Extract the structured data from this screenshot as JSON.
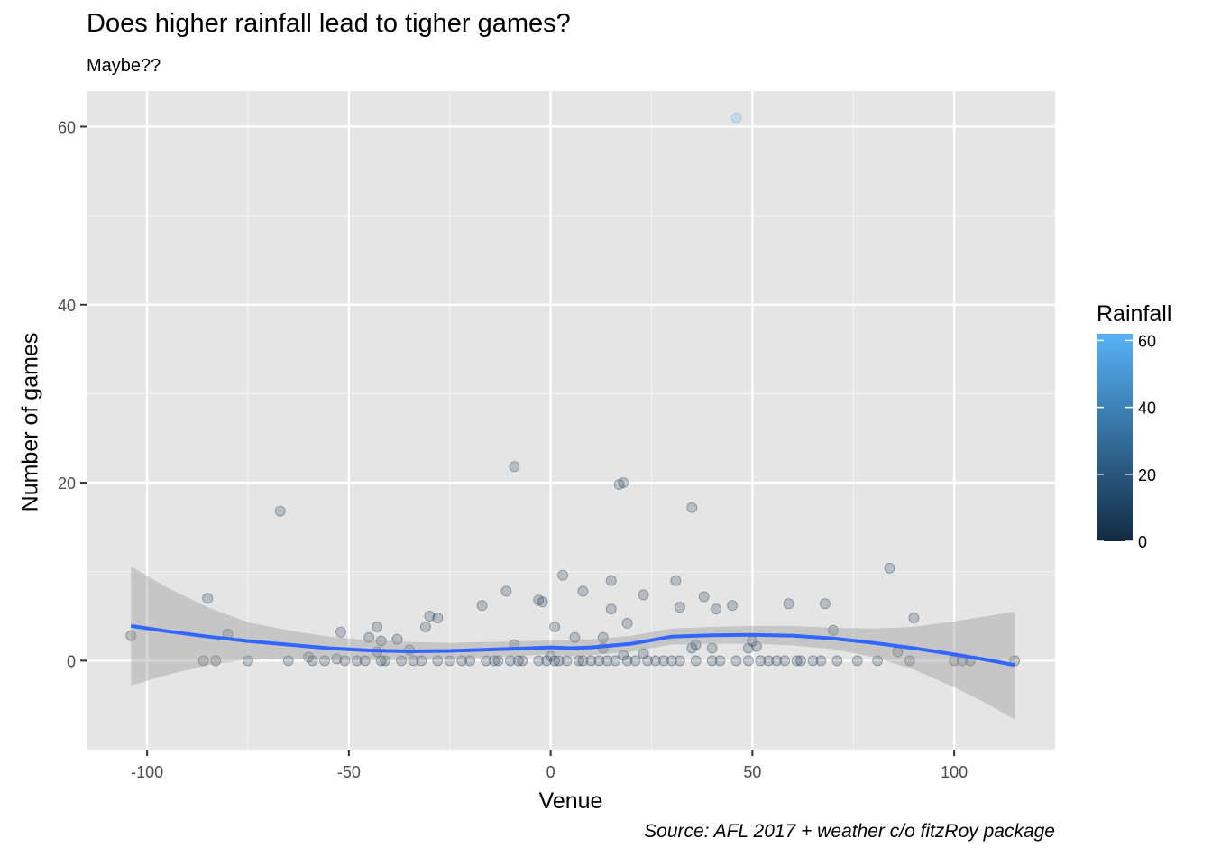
{
  "chart_data": {
    "type": "scatter",
    "title": "Does higher rainfall lead to tigher games?",
    "subtitle": "Maybe??",
    "xlabel": "Venue",
    "ylabel": "Number of games",
    "caption": "Source: AFL 2017 + weather c/o fitzRoy package",
    "xlim": [
      -115,
      125
    ],
    "ylim": [
      -10,
      64
    ],
    "x_ticks": [
      -100,
      -50,
      0,
      50,
      100
    ],
    "y_ticks": [
      0,
      20,
      40,
      60
    ],
    "grid": true,
    "legend": {
      "title": "Rainfall",
      "placement": "right",
      "ticks": [
        0,
        20,
        40,
        60
      ],
      "range": [
        0,
        62
      ],
      "color_low": "#132B43",
      "color_high": "#56B1F7"
    },
    "smooth": {
      "color": "#3366FF",
      "band_color": "#999999",
      "x": [
        -104,
        -95,
        -85,
        -75,
        -65,
        -55,
        -45,
        -35,
        -25,
        -15,
        -5,
        0,
        5,
        10,
        20,
        25,
        30,
        40,
        50,
        60,
        70,
        80,
        90,
        100,
        108,
        115
      ],
      "y": [
        3.9,
        3.3,
        2.7,
        2.2,
        1.8,
        1.4,
        1.15,
        1.05,
        1.1,
        1.25,
        1.4,
        1.5,
        1.4,
        1.5,
        1.9,
        2.3,
        2.7,
        2.85,
        2.9,
        2.8,
        2.5,
        2.0,
        1.4,
        0.7,
        0.1,
        -0.5
      ],
      "lower": [
        -2.8,
        -1.6,
        -0.5,
        0.1,
        0.2,
        0.1,
        0.0,
        0.0,
        0.2,
        0.4,
        0.6,
        0.7,
        0.5,
        0.6,
        1.0,
        1.4,
        1.8,
        1.9,
        1.9,
        1.7,
        1.3,
        0.4,
        -1.0,
        -3.0,
        -4.8,
        -6.6
      ],
      "upper": [
        10.6,
        8.2,
        6.0,
        4.3,
        3.4,
        2.7,
        2.3,
        2.1,
        2.0,
        2.1,
        2.2,
        2.3,
        2.3,
        2.4,
        2.8,
        3.2,
        3.6,
        3.8,
        3.9,
        3.9,
        3.7,
        3.6,
        3.8,
        4.4,
        5.0,
        5.5
      ]
    },
    "points": [
      {
        "x": -104,
        "y": 2.8,
        "r": 2
      },
      {
        "x": -86,
        "y": 0,
        "r": 1
      },
      {
        "x": -83,
        "y": 0,
        "r": 0
      },
      {
        "x": -85,
        "y": 7,
        "r": 3
      },
      {
        "x": -80,
        "y": 3,
        "r": 2
      },
      {
        "x": -75,
        "y": 0,
        "r": 1
      },
      {
        "x": -67,
        "y": 16.8,
        "r": 5
      },
      {
        "x": -65,
        "y": 0,
        "r": 0
      },
      {
        "x": -60,
        "y": 0.4,
        "r": 1
      },
      {
        "x": -59,
        "y": 0,
        "r": 0
      },
      {
        "x": -56,
        "y": 0,
        "r": 0
      },
      {
        "x": -53,
        "y": 0.2,
        "r": 0
      },
      {
        "x": -52,
        "y": 3.2,
        "r": 2
      },
      {
        "x": -51,
        "y": 0,
        "r": 0
      },
      {
        "x": -48,
        "y": 0,
        "r": 1
      },
      {
        "x": -46,
        "y": 0,
        "r": 0
      },
      {
        "x": -45,
        "y": 2.6,
        "r": 1
      },
      {
        "x": -43,
        "y": 3.8,
        "r": 1
      },
      {
        "x": -43,
        "y": 1,
        "r": 0
      },
      {
        "x": -42,
        "y": 2.2,
        "r": 1
      },
      {
        "x": -42,
        "y": 0,
        "r": 0
      },
      {
        "x": -41,
        "y": 0,
        "r": 1
      },
      {
        "x": -38,
        "y": 2.4,
        "r": 1
      },
      {
        "x": -37,
        "y": 0,
        "r": 0
      },
      {
        "x": -35,
        "y": 1.2,
        "r": 1
      },
      {
        "x": -34,
        "y": 0,
        "r": 0
      },
      {
        "x": -32,
        "y": 0,
        "r": 2
      },
      {
        "x": -31,
        "y": 3.8,
        "r": 1
      },
      {
        "x": -30,
        "y": 5,
        "r": 2
      },
      {
        "x": -28,
        "y": 4.8,
        "r": 1
      },
      {
        "x": -28,
        "y": 0,
        "r": 0
      },
      {
        "x": -25,
        "y": 0,
        "r": 1
      },
      {
        "x": -22,
        "y": 0,
        "r": 0
      },
      {
        "x": -20,
        "y": 0,
        "r": 2
      },
      {
        "x": -17,
        "y": 6.2,
        "r": 1
      },
      {
        "x": -16,
        "y": 0,
        "r": 0
      },
      {
        "x": -14,
        "y": 0,
        "r": 3
      },
      {
        "x": -13,
        "y": 0,
        "r": 1
      },
      {
        "x": -11,
        "y": 7.8,
        "r": 2
      },
      {
        "x": -10,
        "y": 0,
        "r": 0
      },
      {
        "x": -9,
        "y": 1.8,
        "r": 1
      },
      {
        "x": -9,
        "y": 21.8,
        "r": 6
      },
      {
        "x": -8,
        "y": 0,
        "r": 0
      },
      {
        "x": -7,
        "y": 0,
        "r": 2
      },
      {
        "x": -3,
        "y": 6.8,
        "r": 2
      },
      {
        "x": -3,
        "y": 0,
        "r": 3
      },
      {
        "x": -2,
        "y": 6.6,
        "r": 1
      },
      {
        "x": -1,
        "y": 0,
        "r": 0
      },
      {
        "x": 0,
        "y": 0.5,
        "r": 1
      },
      {
        "x": 1,
        "y": 3.8,
        "r": 2
      },
      {
        "x": 1,
        "y": 0,
        "r": 4
      },
      {
        "x": 2,
        "y": 0,
        "r": 0
      },
      {
        "x": 3,
        "y": 9.6,
        "r": 2
      },
      {
        "x": 4,
        "y": 0,
        "r": 3
      },
      {
        "x": 6,
        "y": 2.6,
        "r": 2
      },
      {
        "x": 7,
        "y": 0,
        "r": 0
      },
      {
        "x": 8,
        "y": 7.8,
        "r": 1
      },
      {
        "x": 8,
        "y": 0,
        "r": 2
      },
      {
        "x": 10,
        "y": 0,
        "r": 0
      },
      {
        "x": 12,
        "y": 0,
        "r": 1
      },
      {
        "x": 13,
        "y": 2.6,
        "r": 1
      },
      {
        "x": 13,
        "y": 1.4,
        "r": 2
      },
      {
        "x": 14,
        "y": 0,
        "r": 0
      },
      {
        "x": 15,
        "y": 5.8,
        "r": 2
      },
      {
        "x": 15,
        "y": 9,
        "r": 1
      },
      {
        "x": 16,
        "y": 0,
        "r": 3
      },
      {
        "x": 17,
        "y": 19.8,
        "r": 6
      },
      {
        "x": 18,
        "y": 20,
        "r": 6
      },
      {
        "x": 18,
        "y": 0.6,
        "r": 1
      },
      {
        "x": 19,
        "y": 4.2,
        "r": 2
      },
      {
        "x": 19,
        "y": 0,
        "r": 4
      },
      {
        "x": 21,
        "y": 0,
        "r": 2
      },
      {
        "x": 23,
        "y": 7.4,
        "r": 1
      },
      {
        "x": 23,
        "y": 0.8,
        "r": 1
      },
      {
        "x": 24,
        "y": 0,
        "r": 3
      },
      {
        "x": 26,
        "y": 0,
        "r": 2
      },
      {
        "x": 28,
        "y": 0,
        "r": 4
      },
      {
        "x": 30,
        "y": 0,
        "r": 3
      },
      {
        "x": 31,
        "y": 9,
        "r": 2
      },
      {
        "x": 32,
        "y": 6,
        "r": 1
      },
      {
        "x": 32,
        "y": 0,
        "r": 2
      },
      {
        "x": 35,
        "y": 17.2,
        "r": 5
      },
      {
        "x": 35,
        "y": 1.4,
        "r": 1
      },
      {
        "x": 36,
        "y": 1.8,
        "r": 2
      },
      {
        "x": 36,
        "y": 0,
        "r": 0
      },
      {
        "x": 38,
        "y": 7.2,
        "r": 1
      },
      {
        "x": 40,
        "y": 1.4,
        "r": 2
      },
      {
        "x": 40,
        "y": 0,
        "r": 1
      },
      {
        "x": 41,
        "y": 5.8,
        "r": 2
      },
      {
        "x": 42,
        "y": 0,
        "r": 0
      },
      {
        "x": 45,
        "y": 6.2,
        "r": 1
      },
      {
        "x": 46,
        "y": 0,
        "r": 0
      },
      {
        "x": 46,
        "y": 61,
        "r": 62
      },
      {
        "x": 49,
        "y": 1.4,
        "r": 2
      },
      {
        "x": 49,
        "y": 0,
        "r": 0
      },
      {
        "x": 50,
        "y": 2.2,
        "r": 1
      },
      {
        "x": 51,
        "y": 1.6,
        "r": 2
      },
      {
        "x": 52,
        "y": 0,
        "r": 1
      },
      {
        "x": 54,
        "y": 0,
        "r": 3
      },
      {
        "x": 56,
        "y": 0,
        "r": 0
      },
      {
        "x": 58,
        "y": 0,
        "r": 2
      },
      {
        "x": 59,
        "y": 6.4,
        "r": 1
      },
      {
        "x": 61,
        "y": 0,
        "r": 1
      },
      {
        "x": 62,
        "y": 0,
        "r": 0
      },
      {
        "x": 65,
        "y": 0,
        "r": 4
      },
      {
        "x": 67,
        "y": 0,
        "r": 2
      },
      {
        "x": 68,
        "y": 6.4,
        "r": 2
      },
      {
        "x": 70,
        "y": 3.4,
        "r": 1
      },
      {
        "x": 71,
        "y": 0,
        "r": 0
      },
      {
        "x": 76,
        "y": 0,
        "r": 0
      },
      {
        "x": 81,
        "y": 0,
        "r": 1
      },
      {
        "x": 84,
        "y": 10.4,
        "r": 3
      },
      {
        "x": 86,
        "y": 1,
        "r": 1
      },
      {
        "x": 89,
        "y": 0,
        "r": 2
      },
      {
        "x": 90,
        "y": 4.8,
        "r": 2
      },
      {
        "x": 100,
        "y": 0,
        "r": 0
      },
      {
        "x": 102,
        "y": 0,
        "r": 1
      },
      {
        "x": 104,
        "y": 0,
        "r": 0
      },
      {
        "x": 115,
        "y": 0,
        "r": 0
      }
    ]
  }
}
